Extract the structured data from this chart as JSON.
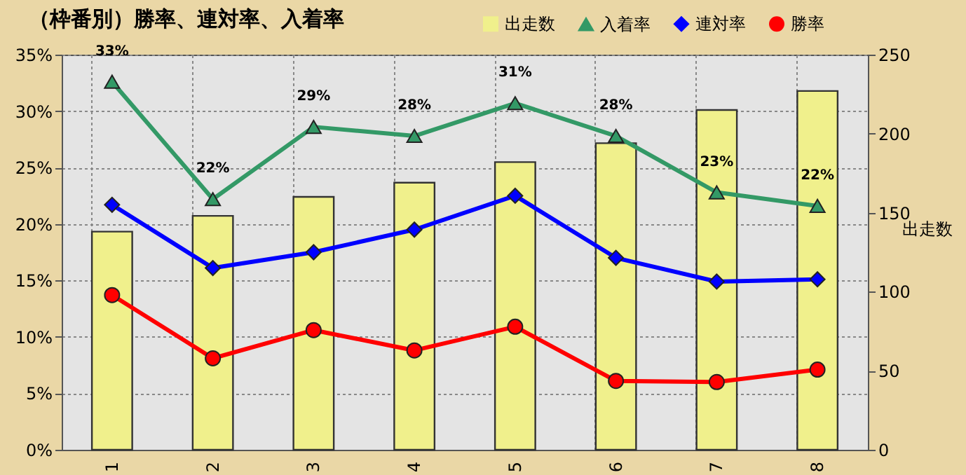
{
  "chart_data": {
    "type": "line",
    "title": "（枠番別）勝率、連対率、入着率",
    "y2label": "出走数",
    "categories": [
      "1",
      "2",
      "3",
      "4",
      "5",
      "6",
      "7",
      "8"
    ],
    "series": [
      {
        "name": "出走数",
        "type": "bar",
        "axis": "y2",
        "color": "#f0f08c",
        "values": [
          138,
          148,
          160,
          169,
          182,
          194,
          215,
          227
        ]
      },
      {
        "name": "入着率",
        "marker": "triangle",
        "color": "#339966",
        "values": [
          32.6,
          22.2,
          28.6,
          27.8,
          30.7,
          27.8,
          22.8,
          21.6
        ],
        "value_labels": [
          "33%",
          "22%",
          "29%",
          "28%",
          "31%",
          "28%",
          "23%",
          "22%"
        ]
      },
      {
        "name": "連対率",
        "marker": "diamond",
        "color": "#0000ff",
        "values": [
          21.7,
          16.1,
          17.5,
          19.5,
          22.5,
          17.0,
          14.9,
          15.1
        ]
      },
      {
        "name": "勝率",
        "marker": "circle",
        "color": "#ff0000",
        "values": [
          13.7,
          8.1,
          10.6,
          8.8,
          10.9,
          6.1,
          6.0,
          7.1
        ]
      }
    ],
    "ylim": [
      0,
      35
    ],
    "yticks": [
      {
        "value": 0,
        "label": "0%"
      },
      {
        "value": 5,
        "label": "5%"
      },
      {
        "value": 10,
        "label": "10%"
      },
      {
        "value": 15,
        "label": "15%"
      },
      {
        "value": 20,
        "label": "20%"
      },
      {
        "value": 25,
        "label": "25%"
      },
      {
        "value": 30,
        "label": "30%"
      },
      {
        "value": 35,
        "label": "35%"
      }
    ],
    "y2lim": [
      0,
      250
    ],
    "y2ticks": [
      0,
      50,
      100,
      150,
      200,
      250
    ],
    "grid": true,
    "legend": "top right"
  }
}
